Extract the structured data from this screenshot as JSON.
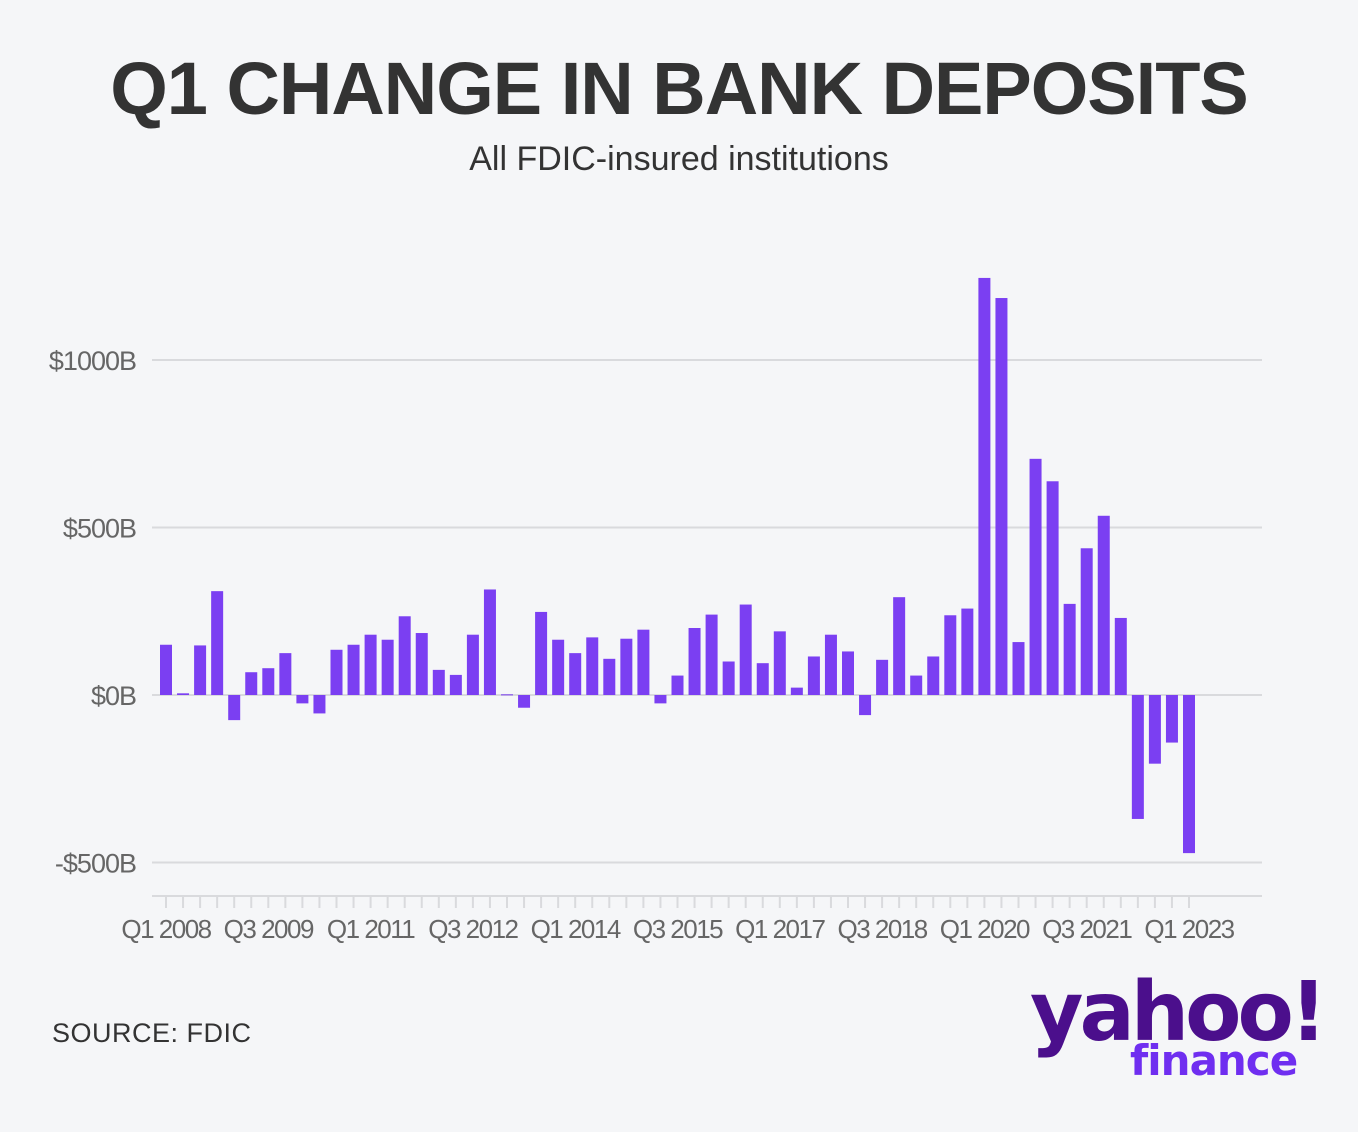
{
  "header": {
    "title": "Q1 CHANGE IN BANK DEPOSITS",
    "subtitle": "All FDIC-insured institutions"
  },
  "footer": {
    "source": "SOURCE: FDIC"
  },
  "logo": {
    "brand": "yahoo!",
    "product": "finance"
  },
  "colors": {
    "bar": "#7b3ff2",
    "background": "#f5f6f8",
    "grid": "#d9dadd",
    "text": "#333333",
    "axis_text": "#666666"
  },
  "chart_data": {
    "type": "bar",
    "title": "Q1 CHANGE IN BANK DEPOSITS",
    "subtitle": "All FDIC-insured institutions",
    "xlabel": "",
    "ylabel": "",
    "ylim": [
      -500,
      1250
    ],
    "y_ticks": [
      {
        "value": 1000,
        "label": "$1000B"
      },
      {
        "value": 500,
        "label": "$500B"
      },
      {
        "value": 0,
        "label": "$0B"
      },
      {
        "value": -500,
        "label": "-$500B"
      }
    ],
    "x_tick_labels": [
      {
        "index": 0,
        "label": "Q1 2008"
      },
      {
        "index": 6,
        "label": "Q3 2009"
      },
      {
        "index": 12,
        "label": "Q1 2011"
      },
      {
        "index": 18,
        "label": "Q3 2012"
      },
      {
        "index": 24,
        "label": "Q1 2014"
      },
      {
        "index": 30,
        "label": "Q3 2015"
      },
      {
        "index": 36,
        "label": "Q1 2017"
      },
      {
        "index": 42,
        "label": "Q3 2018"
      },
      {
        "index": 48,
        "label": "Q1 2020"
      },
      {
        "index": 54,
        "label": "Q3 2021"
      },
      {
        "index": 60,
        "label": "Q1 2023"
      }
    ],
    "grid": true,
    "legend": "none",
    "categories": [
      "Q1 2008",
      "Q2 2008",
      "Q3 2008",
      "Q4 2008",
      "Q1 2009",
      "Q2 2009",
      "Q3 2009",
      "Q4 2009",
      "Q1 2010",
      "Q2 2010",
      "Q3 2010",
      "Q4 2010",
      "Q1 2011",
      "Q2 2011",
      "Q3 2011",
      "Q4 2011",
      "Q1 2012",
      "Q2 2012",
      "Q3 2012",
      "Q4 2012",
      "Q1 2013",
      "Q2 2013",
      "Q3 2013",
      "Q4 2013",
      "Q1 2014",
      "Q2 2014",
      "Q3 2014",
      "Q4 2014",
      "Q1 2015",
      "Q2 2015",
      "Q3 2015",
      "Q4 2015",
      "Q1 2016",
      "Q2 2016",
      "Q3 2016",
      "Q4 2016",
      "Q1 2017",
      "Q2 2017",
      "Q3 2017",
      "Q4 2017",
      "Q1 2018",
      "Q2 2018",
      "Q3 2018",
      "Q4 2018",
      "Q1 2019",
      "Q2 2019",
      "Q3 2019",
      "Q4 2019",
      "Q1 2020",
      "Q2 2020",
      "Q3 2020",
      "Q4 2020",
      "Q1 2021",
      "Q2 2021",
      "Q3 2021",
      "Q4 2021",
      "Q1 2022",
      "Q2 2022",
      "Q3 2022",
      "Q4 2022",
      "Q1 2023"
    ],
    "values": [
      150,
      5,
      148,
      310,
      -75,
      68,
      80,
      125,
      -25,
      -55,
      135,
      150,
      180,
      165,
      235,
      185,
      75,
      60,
      180,
      315,
      2,
      -38,
      248,
      165,
      125,
      172,
      108,
      168,
      195,
      -25,
      58,
      200,
      240,
      100,
      270,
      95,
      190,
      22,
      115,
      180,
      130,
      -60,
      105,
      292,
      58,
      115,
      238,
      258,
      1245,
      1185,
      158,
      705,
      638,
      272,
      438,
      535,
      230,
      -370,
      -205,
      -142,
      -472
    ]
  }
}
